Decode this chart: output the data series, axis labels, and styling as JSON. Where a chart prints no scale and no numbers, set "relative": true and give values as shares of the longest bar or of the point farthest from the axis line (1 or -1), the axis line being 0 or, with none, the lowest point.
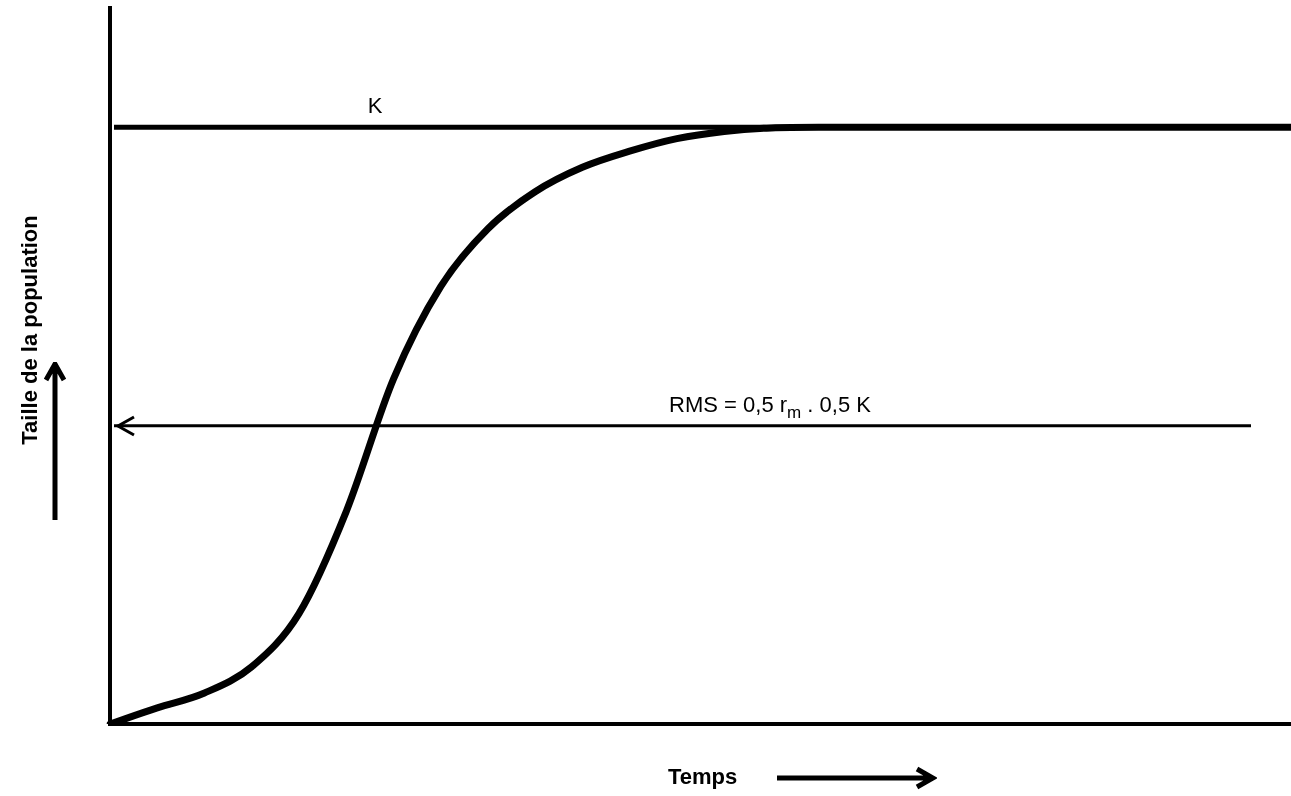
{
  "chart_data": {
    "type": "line",
    "relative": true,
    "xlabel": "Temps",
    "ylabel": "Taille de la population",
    "marker": "none",
    "line_style": "solid",
    "categories": [
      null,
      null,
      null,
      null,
      null,
      null,
      null,
      null,
      null,
      null,
      null,
      null,
      null,
      null,
      null,
      null,
      null,
      null,
      null,
      null,
      null,
      null,
      null,
      null,
      null,
      null
    ],
    "series": [
      {
        "color": "#000000",
        "values": [
          0,
          0.027,
          0.052,
          0.096,
          0.185,
          0.356,
          0.578,
          0.733,
          0.83,
          0.892,
          0.933,
          0.96,
          0.981,
          0.993,
          0.999,
          1,
          1,
          1,
          1,
          1,
          1,
          1,
          1,
          1,
          1,
          1
        ]
      }
    ],
    "ref_lines": [
      {
        "axis": "y",
        "value": 1,
        "label": "K",
        "color": "#000000"
      },
      {
        "axis": "y",
        "value": 0.5,
        "label": "RMS = 0,5 r$_{m}$ . 0,5 K",
        "color": "#000000"
      }
    ]
  }
}
